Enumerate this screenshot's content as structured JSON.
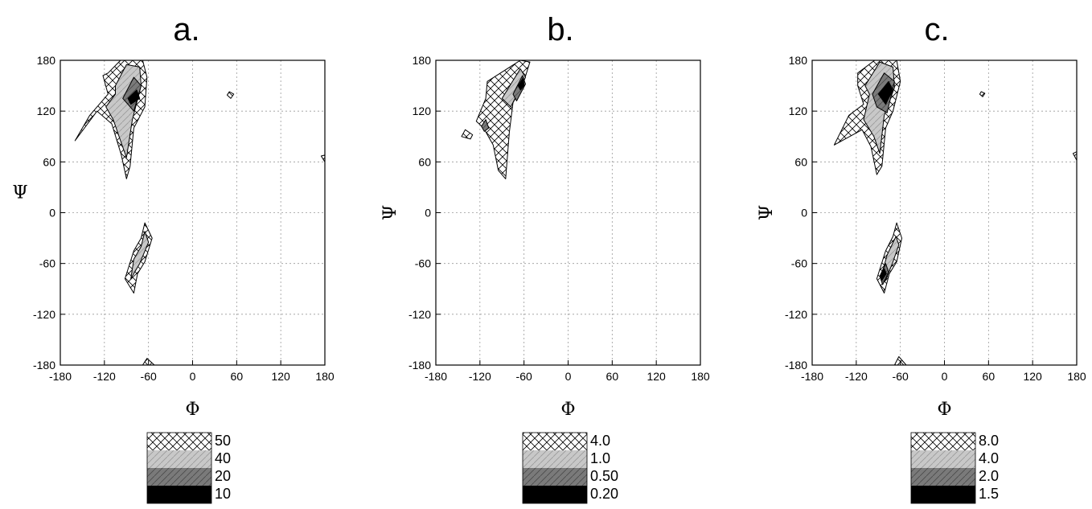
{
  "chart_data": [
    {
      "type": "contour",
      "panel_label": "a.",
      "xlabel": "Φ",
      "ylabel": "Ψ",
      "xlim": [
        -180,
        180
      ],
      "ylim": [
        -180,
        180
      ],
      "xticks": [
        -180,
        -120,
        -60,
        0,
        60,
        120,
        180
      ],
      "yticks": [
        180,
        120,
        60,
        0,
        -60,
        -120,
        -180
      ],
      "grid": true,
      "legend_placement": "below",
      "legend_levels": [
        "50",
        "40",
        "20",
        "10"
      ],
      "regions": [
        {
          "level": 0,
          "points": [
            [
              -115,
              165
            ],
            [
              -98,
              180
            ],
            [
              -68,
              180
            ],
            [
              -62,
              160
            ],
            [
              -65,
              125
            ],
            [
              -80,
              100
            ],
            [
              -85,
              55
            ],
            [
              -90,
              40
            ],
            [
              -97,
              68
            ],
            [
              -110,
              105
            ],
            [
              -130,
              120
            ],
            [
              -160,
              85
            ],
            [
              -140,
              115
            ],
            [
              -115,
              140
            ],
            [
              -122,
              162
            ]
          ]
        },
        {
          "level": 1,
          "points": [
            [
              -105,
              150
            ],
            [
              -90,
              175
            ],
            [
              -72,
              172
            ],
            [
              -70,
              150
            ],
            [
              -82,
              110
            ],
            [
              -90,
              65
            ],
            [
              -98,
              85
            ],
            [
              -108,
              110
            ],
            [
              -118,
              125
            ],
            [
              -105,
              140
            ]
          ]
        },
        {
          "level": 2,
          "points": [
            [
              -95,
              135
            ],
            [
              -80,
              160
            ],
            [
              -70,
              150
            ],
            [
              -80,
              120
            ],
            [
              -88,
              128
            ]
          ]
        },
        {
          "level": 3,
          "points": [
            [
              -88,
              135
            ],
            [
              -76,
              145
            ],
            [
              -72,
              135
            ],
            [
              -84,
              128
            ]
          ]
        },
        {
          "level": 0,
          "points": [
            [
              -65,
              -12
            ],
            [
              -55,
              -30
            ],
            [
              -65,
              -58
            ],
            [
              -75,
              -72
            ],
            [
              -80,
              -95
            ],
            [
              -92,
              -78
            ],
            [
              -80,
              -45
            ],
            [
              -70,
              -30
            ]
          ]
        },
        {
          "level": 1,
          "points": [
            [
              -65,
              -22
            ],
            [
              -60,
              -35
            ],
            [
              -72,
              -60
            ],
            [
              -84,
              -78
            ],
            [
              -80,
              -55
            ],
            [
              -70,
              -40
            ]
          ]
        },
        {
          "level": 0,
          "points": [
            [
              -62,
              -172
            ],
            [
              -52,
              -180
            ],
            [
              -68,
              -180
            ]
          ]
        },
        {
          "level": 0,
          "points": [
            [
              50,
              143
            ],
            [
              56,
              140
            ],
            [
              52,
              135
            ],
            [
              47,
              139
            ]
          ]
        },
        {
          "level": 0,
          "points": [
            [
              175,
              67
            ],
            [
              180,
              60
            ],
            [
              180,
              68
            ]
          ]
        }
      ]
    },
    {
      "type": "contour",
      "panel_label": "b.",
      "xlabel": "Φ",
      "ylabel": "Ψ",
      "xlim": [
        -180,
        180
      ],
      "ylim": [
        -180,
        180
      ],
      "xticks": [
        -180,
        -120,
        -60,
        0,
        60,
        120,
        180
      ],
      "yticks": [
        180,
        120,
        60,
        0,
        -60,
        -120,
        -180
      ],
      "grid": true,
      "legend_placement": "below",
      "legend_levels": [
        "4.0",
        "1.0",
        "0.50",
        "0.20"
      ],
      "regions": [
        {
          "level": 0,
          "points": [
            [
              -110,
              155
            ],
            [
              -65,
              180
            ],
            [
              -52,
              178
            ],
            [
              -62,
              150
            ],
            [
              -75,
              130
            ],
            [
              -80,
              95
            ],
            [
              -85,
              40
            ],
            [
              -95,
              50
            ],
            [
              -102,
              80
            ],
            [
              -115,
              100
            ],
            [
              -125,
              108
            ],
            [
              -112,
              135
            ]
          ]
        },
        {
          "level": 0,
          "points": [
            [
              -140,
              98
            ],
            [
              -130,
              92
            ],
            [
              -133,
              87
            ],
            [
              -145,
              90
            ]
          ]
        },
        {
          "level": 1,
          "points": [
            [
              -90,
              135
            ],
            [
              -65,
              170
            ],
            [
              -58,
              160
            ],
            [
              -78,
              125
            ]
          ]
        },
        {
          "level": 2,
          "points": [
            [
              -75,
              140
            ],
            [
              -62,
              162
            ],
            [
              -58,
              152
            ],
            [
              -70,
              132
            ]
          ]
        },
        {
          "level": 3,
          "points": [
            [
              -68,
              150
            ],
            [
              -61,
              160
            ],
            [
              -60,
              150
            ],
            [
              -65,
              145
            ]
          ]
        },
        {
          "level": 2,
          "points": [
            [
              -118,
              102
            ],
            [
              -112,
              110
            ],
            [
              -108,
              100
            ],
            [
              -114,
              96
            ]
          ]
        }
      ]
    },
    {
      "type": "contour",
      "panel_label": "c.",
      "xlabel": "Φ",
      "ylabel": "Ψ",
      "xlim": [
        -180,
        180
      ],
      "ylim": [
        -180,
        180
      ],
      "xticks": [
        -180,
        -120,
        -60,
        0,
        60,
        120,
        180
      ],
      "yticks": [
        180,
        120,
        60,
        0,
        -60,
        -120,
        -180
      ],
      "grid": true,
      "legend_placement": "below",
      "legend_levels": [
        "8.0",
        "4.0",
        "2.0",
        "1.5"
      ],
      "regions": [
        {
          "level": 0,
          "points": [
            [
              -118,
              165
            ],
            [
              -95,
              180
            ],
            [
              -65,
              180
            ],
            [
              -60,
              155
            ],
            [
              -70,
              120
            ],
            [
              -80,
              100
            ],
            [
              -85,
              55
            ],
            [
              -92,
              45
            ],
            [
              -100,
              78
            ],
            [
              -112,
              98
            ],
            [
              -150,
              80
            ],
            [
              -130,
              115
            ],
            [
              -110,
              128
            ],
            [
              -118,
              150
            ]
          ]
        },
        {
          "level": 1,
          "points": [
            [
              -108,
              150
            ],
            [
              -88,
              178
            ],
            [
              -70,
              172
            ],
            [
              -68,
              148
            ],
            [
              -82,
              115
            ],
            [
              -88,
              70
            ],
            [
              -96,
              90
            ],
            [
              -110,
              110
            ],
            [
              -102,
              140
            ]
          ]
        },
        {
          "level": 2,
          "points": [
            [
              -98,
              140
            ],
            [
              -82,
              165
            ],
            [
              -68,
              155
            ],
            [
              -78,
              118
            ],
            [
              -92,
              125
            ]
          ]
        },
        {
          "level": 3,
          "points": [
            [
              -90,
              140
            ],
            [
              -76,
              155
            ],
            [
              -70,
              145
            ],
            [
              -80,
              128
            ]
          ]
        },
        {
          "level": 0,
          "points": [
            [
              -65,
              -12
            ],
            [
              -58,
              -30
            ],
            [
              -65,
              -58
            ],
            [
              -75,
              -72
            ],
            [
              -82,
              -95
            ],
            [
              -92,
              -78
            ],
            [
              -80,
              -45
            ],
            [
              -70,
              -28
            ]
          ]
        },
        {
          "level": 1,
          "points": [
            [
              -66,
              -28
            ],
            [
              -62,
              -38
            ],
            [
              -70,
              -58
            ],
            [
              -80,
              -80
            ],
            [
              -86,
              -75
            ],
            [
              -78,
              -50
            ]
          ]
        },
        {
          "level": 2,
          "points": [
            [
              -80,
              -60
            ],
            [
              -76,
              -70
            ],
            [
              -84,
              -85
            ],
            [
              -88,
              -75
            ]
          ]
        },
        {
          "level": 3,
          "points": [
            [
              -82,
              -66
            ],
            [
              -79,
              -72
            ],
            [
              -85,
              -80
            ],
            [
              -87,
              -74
            ]
          ]
        },
        {
          "level": 0,
          "points": [
            [
              -62,
              -170
            ],
            [
              -52,
              -180
            ],
            [
              -68,
              -180
            ]
          ]
        },
        {
          "level": 0,
          "points": [
            [
              50,
              143
            ],
            [
              55,
              141
            ],
            [
              52,
              137
            ],
            [
              48,
              140
            ]
          ]
        },
        {
          "level": 0,
          "points": [
            [
              175,
              70
            ],
            [
              180,
              62
            ],
            [
              180,
              72
            ]
          ]
        }
      ]
    }
  ]
}
